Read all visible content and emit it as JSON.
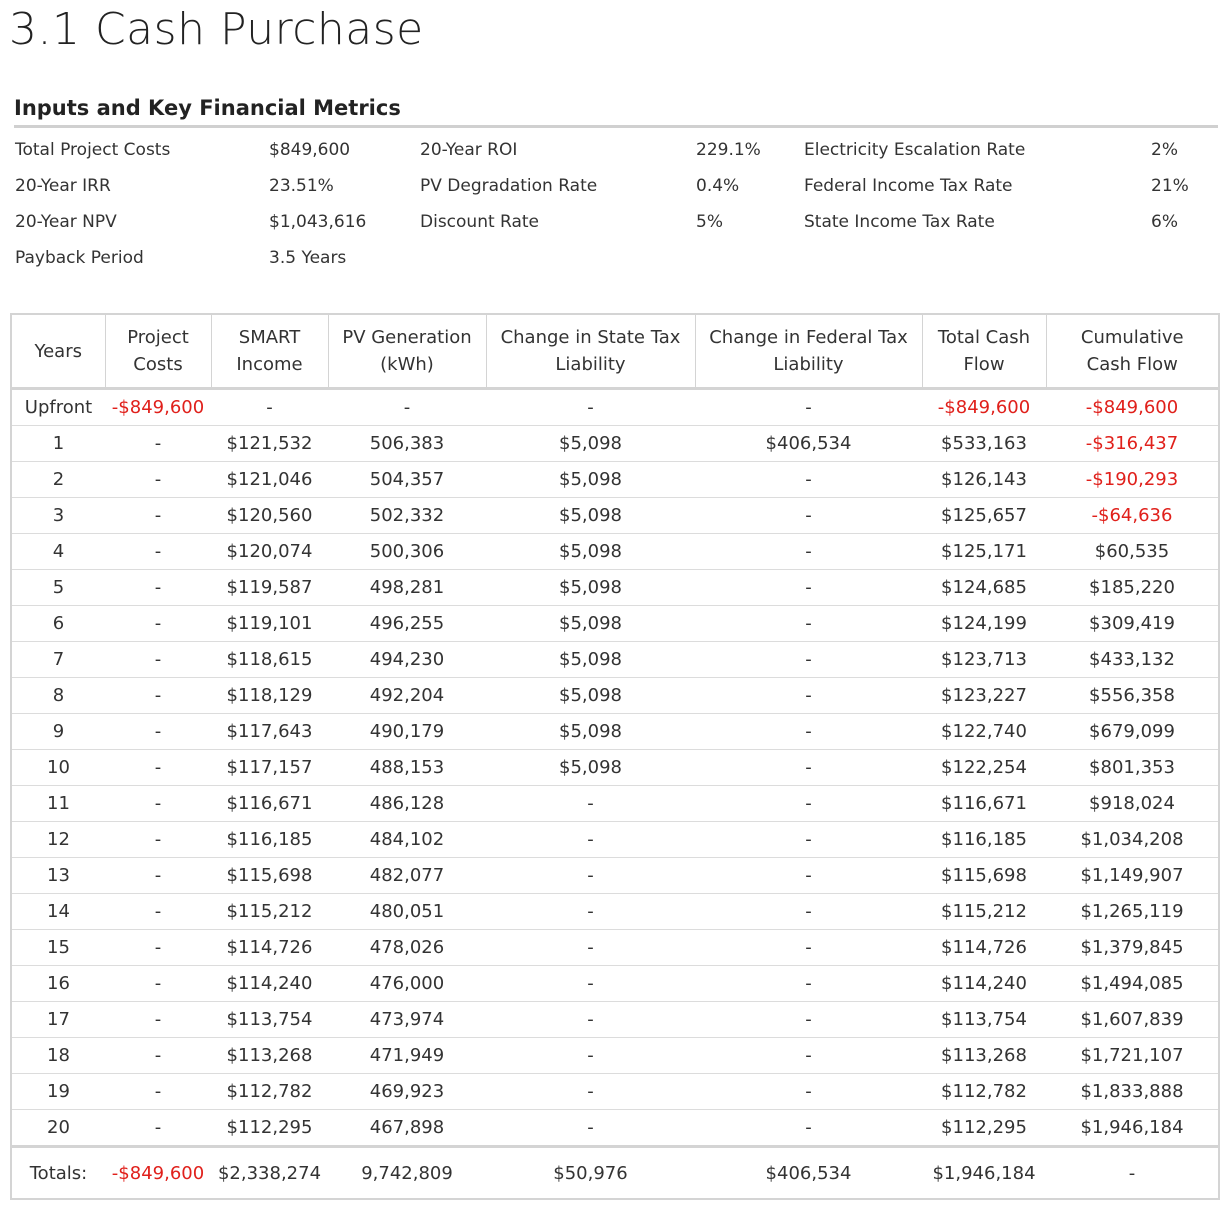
{
  "page": {
    "title": "3.1  Cash Purchase"
  },
  "metrics": {
    "heading": "Inputs and Key Financial Metrics",
    "rows": [
      [
        {
          "label": "Total Project Costs",
          "value": "$849,600"
        },
        {
          "label": "20-Year ROI",
          "value": "229.1%"
        },
        {
          "label": "Electricity Escalation Rate",
          "value": "2%"
        }
      ],
      [
        {
          "label": "20-Year IRR",
          "value": "23.51%"
        },
        {
          "label": "PV Degradation Rate",
          "value": "0.4%"
        },
        {
          "label": "Federal Income Tax Rate",
          "value": "21%"
        }
      ],
      [
        {
          "label": "20-Year NPV",
          "value": "$1,043,616"
        },
        {
          "label": "Discount Rate",
          "value": "5%"
        },
        {
          "label": "State Income Tax Rate",
          "value": "6%"
        }
      ],
      [
        {
          "label": "Payback Period",
          "value": "3.5 Years"
        }
      ]
    ]
  },
  "table": {
    "headers": [
      [
        "Years"
      ],
      [
        "Project",
        "Costs"
      ],
      [
        "SMART",
        "Income"
      ],
      [
        "PV Generation",
        "(kWh)"
      ],
      [
        "Change in State Tax",
        "Liability"
      ],
      [
        "Change in Federal Tax",
        "Liability"
      ],
      [
        "Total Cash",
        "Flow"
      ],
      [
        "Cumulative",
        "Cash Flow"
      ]
    ],
    "negative_color": "#e0201b",
    "rows": [
      [
        "Upfront",
        "-$849,600",
        "-",
        "-",
        "-",
        "-",
        "-$849,600",
        "-$849,600"
      ],
      [
        "1",
        "-",
        "$121,532",
        "506,383",
        "$5,098",
        "$406,534",
        "$533,163",
        "-$316,437"
      ],
      [
        "2",
        "-",
        "$121,046",
        "504,357",
        "$5,098",
        "-",
        "$126,143",
        "-$190,293"
      ],
      [
        "3",
        "-",
        "$120,560",
        "502,332",
        "$5,098",
        "-",
        "$125,657",
        "-$64,636"
      ],
      [
        "4",
        "-",
        "$120,074",
        "500,306",
        "$5,098",
        "-",
        "$125,171",
        "$60,535"
      ],
      [
        "5",
        "-",
        "$119,587",
        "498,281",
        "$5,098",
        "-",
        "$124,685",
        "$185,220"
      ],
      [
        "6",
        "-",
        "$119,101",
        "496,255",
        "$5,098",
        "-",
        "$124,199",
        "$309,419"
      ],
      [
        "7",
        "-",
        "$118,615",
        "494,230",
        "$5,098",
        "-",
        "$123,713",
        "$433,132"
      ],
      [
        "8",
        "-",
        "$118,129",
        "492,204",
        "$5,098",
        "-",
        "$123,227",
        "$556,358"
      ],
      [
        "9",
        "-",
        "$117,643",
        "490,179",
        "$5,098",
        "-",
        "$122,740",
        "$679,099"
      ],
      [
        "10",
        "-",
        "$117,157",
        "488,153",
        "$5,098",
        "-",
        "$122,254",
        "$801,353"
      ],
      [
        "11",
        "-",
        "$116,671",
        "486,128",
        "-",
        "-",
        "$116,671",
        "$918,024"
      ],
      [
        "12",
        "-",
        "$116,185",
        "484,102",
        "-",
        "-",
        "$116,185",
        "$1,034,208"
      ],
      [
        "13",
        "-",
        "$115,698",
        "482,077",
        "-",
        "-",
        "$115,698",
        "$1,149,907"
      ],
      [
        "14",
        "-",
        "$115,212",
        "480,051",
        "-",
        "-",
        "$115,212",
        "$1,265,119"
      ],
      [
        "15",
        "-",
        "$114,726",
        "478,026",
        "-",
        "-",
        "$114,726",
        "$1,379,845"
      ],
      [
        "16",
        "-",
        "$114,240",
        "476,000",
        "-",
        "-",
        "$114,240",
        "$1,494,085"
      ],
      [
        "17",
        "-",
        "$113,754",
        "473,974",
        "-",
        "-",
        "$113,754",
        "$1,607,839"
      ],
      [
        "18",
        "-",
        "$113,268",
        "471,949",
        "-",
        "-",
        "$113,268",
        "$1,721,107"
      ],
      [
        "19",
        "-",
        "$112,782",
        "469,923",
        "-",
        "-",
        "$112,782",
        "$1,833,888"
      ],
      [
        "20",
        "-",
        "$112,295",
        "467,898",
        "-",
        "-",
        "$112,295",
        "$1,946,184"
      ]
    ],
    "totals": [
      "Totals:",
      "-$849,600",
      "$2,338,274",
      "9,742,809",
      "$50,976",
      "$406,534",
      "$1,946,184",
      "-"
    ]
  }
}
